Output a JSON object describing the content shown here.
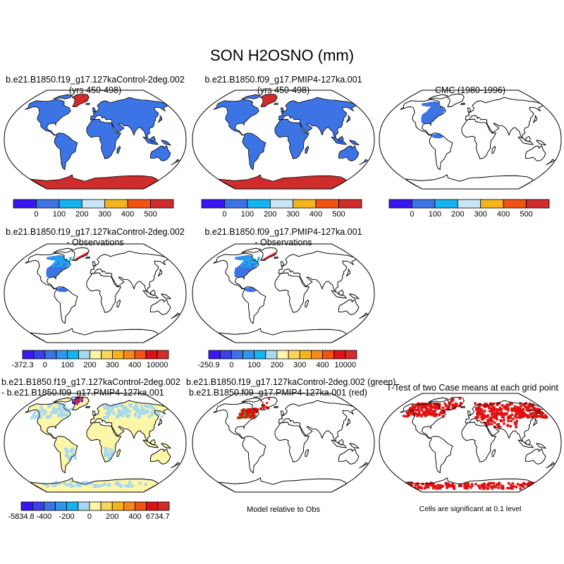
{
  "figure": {
    "title": "SON H2OSNO (mm)"
  },
  "panels": [
    {
      "id": "p1",
      "title_line1": "b.e21.B1850.f19_g17.127kaControl-2deg.002",
      "title_line2": "(yrs 450-498)",
      "map_style": "model",
      "colorbar": "cb_main"
    },
    {
      "id": "p2",
      "title_line1": "b.e21.B1850.f09_g17.PMIP4-127ka.001",
      "title_line2": "(yrs 450-498)",
      "map_style": "model",
      "colorbar": "cb_main"
    },
    {
      "id": "p3",
      "title_line1": "CMC (1980-1996)",
      "title_line2": "",
      "map_style": "obs",
      "colorbar": "cb_main"
    },
    {
      "id": "p4",
      "title_line1": "b.e21.B1850.f19_g17.127kaControl-2deg.002",
      "title_line2": "- Observations",
      "map_style": "bias",
      "colorbar": "cb_bias1"
    },
    {
      "id": "p5",
      "title_line1": "b.e21.B1850.f09_g17.PMIP4-127ka.001",
      "title_line2": "- Observations",
      "map_style": "bias",
      "colorbar": "cb_bias2"
    },
    {
      "id": "p7",
      "title_line1": "b.e21.B1850.f19_g17.127kaControl-2deg.002",
      "title_line2": "- b.e21.B1850.f09_g17.PMIP4-127ka.001",
      "map_style": "diff",
      "colorbar": "cb_diff"
    },
    {
      "id": "p8",
      "title_line1": "b.e21.B1850.f19_g17.127kaControl-2deg.002 (green)",
      "title_line2": "b.e21.B1850.f09_g17.PMIP4-127ka.001 (red)",
      "map_style": "relobs",
      "note": "Model relative to Obs"
    },
    {
      "id": "p9",
      "title_line1": "T-Test of two Case means at each grid point",
      "title_line2": "",
      "map_style": "ttest",
      "note": "Cells are significant at 0.1 level"
    }
  ],
  "colorbars": {
    "cb_main": {
      "colors": [
        "#3a17f2",
        "#3d74e5",
        "#15b3ef",
        "#c8e6f3",
        "#f5b41e",
        "#f35212",
        "#d12c2c"
      ],
      "labels": [
        "0",
        "100",
        "200",
        "300",
        "400",
        "500"
      ]
    },
    "cb_bias1": {
      "colors": [
        "#3a17f2",
        "#3a3fe6",
        "#3d74e5",
        "#2e95ea",
        "#15b3ef",
        "#a6d8f0",
        "#fdf6a8",
        "#f8d45a",
        "#f5b41e",
        "#f5891a",
        "#f35212",
        "#e0101a",
        "#d12c2c"
      ],
      "labels": [
        "-372.3",
        "0",
        "100",
        "200",
        "300",
        "400",
        "10000"
      ]
    },
    "cb_bias2": {
      "colors": [
        "#3a17f2",
        "#3a3fe6",
        "#3d74e5",
        "#2e95ea",
        "#15b3ef",
        "#a6d8f0",
        "#fdf6a8",
        "#f8d45a",
        "#f5b41e",
        "#f5891a",
        "#f35212",
        "#e0101a",
        "#d12c2c"
      ],
      "labels": [
        "-250.9",
        "0",
        "100",
        "200",
        "300",
        "400",
        "10000"
      ]
    },
    "cb_diff": {
      "colors": [
        "#3a17f2",
        "#3a3fe6",
        "#3d74e5",
        "#2e95ea",
        "#15b3ef",
        "#a6d8f0",
        "#fdf6a8",
        "#f8d45a",
        "#f5b41e",
        "#f5891a",
        "#f35212",
        "#e0101a",
        "#d12c2c"
      ],
      "labels": [
        "-5834.8",
        "-400",
        "-200",
        "0",
        "200",
        "400",
        "6734.7"
      ]
    }
  },
  "colors": {
    "snow_blue": "#3d74e5",
    "snow_red": "#d12c2c",
    "obs_bias_blue": "#3d74e5",
    "diff_fill": "#fdf6a8",
    "diff_light_blue": "#a6d8f0",
    "relobs_green": "#22c422",
    "relobs_red": "#e01010",
    "ttest_red": "#e01010",
    "coast": "#000000"
  }
}
